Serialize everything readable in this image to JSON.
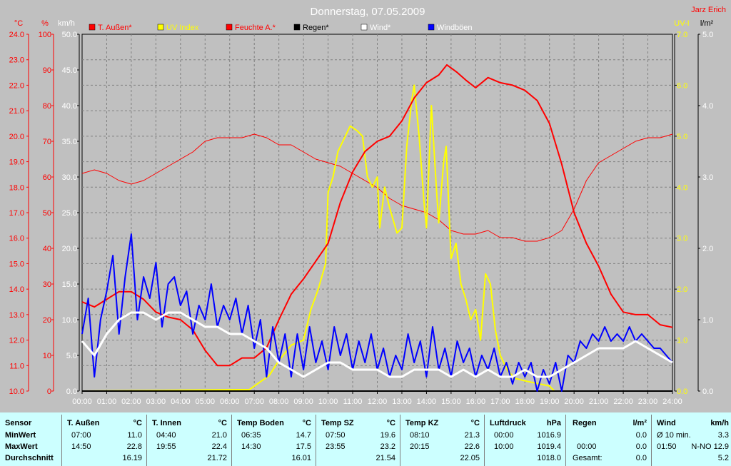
{
  "title": "Donnerstag, 07.05.2009",
  "author": "Jarz Erich",
  "axis_units": {
    "temp": "°C",
    "humidity": "%",
    "wind": "km/h",
    "uv": "UV-I",
    "rain": "l/m²"
  },
  "legend": [
    {
      "label": "T. Außen*",
      "color": "#ff0000",
      "text_color": "#ff0000"
    },
    {
      "label": "UV Index",
      "color": "#ffff00",
      "text_color": "#ffff00"
    },
    {
      "label": "Feuchte A.*",
      "color": "#ff0000",
      "text_color": "#ff0000"
    },
    {
      "label": "Regen*",
      "color": "#000000",
      "text_color": "#000000"
    },
    {
      "label": "Wind*",
      "color": "#ffffff",
      "text_color": "#ffffff"
    },
    {
      "label": "Windböen",
      "color": "#0000ff",
      "text_color": "#ffffff"
    }
  ],
  "colors": {
    "temp": "#ff0000",
    "humidity": "#ff0000",
    "uv": "#ffff00",
    "rain": "#000000",
    "wind": "#ffffff",
    "gusts": "#0000ff",
    "plot_bg": "#c0c0c0",
    "grid": "#808080",
    "panel_bg": "#ccffff"
  },
  "chart_data": {
    "type": "line",
    "title": "Donnerstag, 07.05.2009",
    "x_labels": [
      "00:00",
      "01:00",
      "02:00",
      "03:00",
      "04:00",
      "05:00",
      "06:00",
      "07:00",
      "08:00",
      "09:00",
      "10:00",
      "11:00",
      "12:00",
      "13:00",
      "14:00",
      "15:00",
      "16:00",
      "17:00",
      "18:00",
      "19:00",
      "20:00",
      "21:00",
      "22:00",
      "23:00",
      "24:00"
    ],
    "xlim": [
      0,
      24
    ],
    "grid": true,
    "axes": {
      "temp": {
        "ticks": [
          "10.0",
          "11.0",
          "12.0",
          "13.0",
          "14.0",
          "15.0",
          "16.0",
          "17.0",
          "18.0",
          "19.0",
          "20.0",
          "21.0",
          "22.0",
          "23.0",
          "24.0"
        ],
        "range": [
          10,
          24
        ],
        "unit": "°C"
      },
      "humidity": {
        "ticks": [
          "0",
          "10",
          "20",
          "30",
          "40",
          "50",
          "60",
          "70",
          "80",
          "90",
          "100"
        ],
        "range": [
          0,
          100
        ],
        "unit": "%"
      },
      "wind": {
        "ticks": [
          "0.0",
          "5.0",
          "10.0",
          "15.0",
          "20.0",
          "25.0",
          "30.0",
          "35.0",
          "40.0",
          "45.0",
          "50.0"
        ],
        "range": [
          0,
          50
        ],
        "unit": "km/h"
      },
      "uv": {
        "ticks": [
          "0.0",
          "1.0",
          "2.0",
          "3.0",
          "4.0",
          "5.0",
          "6.0",
          "7.0"
        ],
        "range": [
          0,
          7
        ],
        "unit": "UV-I"
      },
      "rain": {
        "ticks": [
          "0.0",
          "1.0",
          "2.0",
          "3.0",
          "4.0",
          "5.0"
        ],
        "range": [
          0,
          5
        ],
        "unit": "l/m²"
      }
    },
    "series": [
      {
        "name": "T. Außen*",
        "axis": "temp",
        "color": "#ff0000",
        "width": 2,
        "x": [
          0,
          0.5,
          1,
          1.5,
          2,
          2.5,
          3,
          3.5,
          4,
          4.5,
          5,
          5.5,
          6,
          6.5,
          7,
          7.5,
          8,
          8.5,
          9,
          9.5,
          10,
          10.5,
          11,
          11.5,
          12,
          12.5,
          13,
          13.5,
          14,
          14.5,
          14.83,
          15.25,
          15.6,
          16,
          16.5,
          17,
          17.5,
          18,
          18.5,
          19,
          19.5,
          20,
          20.5,
          21,
          21.5,
          22,
          22.5,
          23,
          23.5,
          24
        ],
        "y": [
          13.5,
          13.3,
          13.6,
          13.9,
          13.9,
          13.6,
          13.1,
          12.9,
          12.8,
          12.4,
          11.6,
          11.0,
          11.0,
          11.3,
          11.3,
          11.7,
          12.8,
          13.8,
          14.4,
          15.1,
          15.8,
          17.4,
          18.6,
          19.4,
          19.8,
          20.0,
          20.6,
          21.5,
          22.1,
          22.4,
          22.8,
          22.5,
          22.2,
          21.9,
          22.3,
          22.1,
          22.0,
          21.8,
          21.4,
          20.5,
          18.9,
          17.0,
          15.8,
          14.9,
          13.8,
          13.1,
          13.0,
          13.0,
          12.6,
          12.5
        ]
      },
      {
        "name": "Feuchte A.*",
        "axis": "humidity",
        "color": "#ff0000",
        "width": 1,
        "x": [
          0,
          0.5,
          1,
          1.5,
          2,
          2.5,
          3,
          3.5,
          4,
          4.5,
          5,
          5.5,
          6,
          6.5,
          7,
          7.5,
          8,
          8.5,
          9,
          9.5,
          10,
          10.5,
          11,
          11.5,
          12,
          12.5,
          13,
          13.5,
          14,
          14.5,
          15,
          15.5,
          16,
          16.5,
          17,
          17.5,
          18,
          18.5,
          19,
          19.5,
          20,
          20.5,
          21,
          21.5,
          22,
          22.5,
          23,
          23.5,
          24
        ],
        "y": [
          61,
          62,
          61,
          59,
          58,
          59,
          61,
          63,
          65,
          67,
          70,
          71,
          71,
          71,
          72,
          71,
          69,
          69,
          67,
          65,
          64,
          63,
          61,
          59,
          57,
          54,
          52,
          51,
          50,
          48,
          45,
          44,
          44,
          45,
          43,
          43,
          42,
          42,
          43,
          45,
          51,
          59,
          64,
          66,
          68,
          70,
          71,
          71,
          72
        ]
      },
      {
        "name": "UV Index",
        "axis": "uv",
        "color": "#ffff00",
        "width": 2,
        "x": [
          0,
          6.8,
          7.3,
          7.6,
          8,
          8.5,
          9,
          9.3,
          9.6,
          9.9,
          10,
          10.2,
          10.4,
          10.6,
          10.9,
          11.2,
          11.4,
          11.6,
          11.8,
          12,
          12.1,
          12.3,
          12.5,
          12.8,
          13,
          13.2,
          13.4,
          13.5,
          13.7,
          13.9,
          14.0,
          14.2,
          14.4,
          14.5,
          14.7,
          14.8,
          15.0,
          15.2,
          15.4,
          15.6,
          15.8,
          16.0,
          16.2,
          16.4,
          16.6,
          16.8,
          17.0,
          17.3,
          17.6,
          18,
          18.5,
          19,
          19.2,
          24
        ],
        "y": [
          0,
          0.03,
          0.2,
          0.3,
          0.6,
          0.9,
          1.0,
          1.6,
          2.0,
          2.5,
          3.9,
          4.2,
          4.7,
          4.9,
          5.2,
          5.1,
          5.0,
          4.2,
          4.0,
          4.2,
          3.2,
          4.0,
          3.6,
          3.1,
          3.2,
          4.8,
          5.7,
          6.0,
          5.0,
          3.7,
          3.2,
          5.6,
          4.0,
          3.3,
          4.5,
          4.8,
          2.6,
          2.9,
          2.1,
          1.8,
          1.4,
          1.6,
          1.0,
          2.3,
          2.1,
          1.2,
          0.7,
          0.4,
          0.25,
          0.2,
          0.15,
          0.1,
          0,
          0
        ]
      },
      {
        "name": "Regen*",
        "axis": "rain",
        "color": "#000000",
        "width": 2,
        "x": [
          0,
          24
        ],
        "y": [
          0,
          0
        ]
      },
      {
        "name": "Wind*",
        "axis": "wind",
        "color": "#ffffff",
        "width": 3,
        "x": [
          0,
          0.5,
          1,
          1.5,
          2,
          2.5,
          3,
          3.5,
          4,
          4.5,
          5,
          5.5,
          6,
          6.5,
          7,
          7.5,
          8,
          8.5,
          9,
          9.5,
          10,
          10.5,
          11,
          11.5,
          12,
          12.5,
          13,
          13.5,
          14,
          14.5,
          15,
          15.5,
          16,
          16.5,
          17,
          17.5,
          18,
          18.5,
          19,
          19.5,
          20,
          20.5,
          21,
          21.5,
          22,
          22.5,
          23,
          23.5,
          24
        ],
        "y": [
          7,
          5,
          8,
          10,
          11,
          11,
          10,
          11,
          11,
          10,
          9,
          9,
          8,
          8,
          7,
          6,
          4,
          3,
          2,
          3,
          4,
          4,
          3,
          3,
          3,
          2,
          2,
          3,
          3,
          3,
          2,
          3,
          2,
          3,
          2,
          2,
          3,
          2,
          2,
          3,
          4,
          5,
          6,
          6,
          6,
          7,
          6,
          5,
          4
        ]
      },
      {
        "name": "Windböen",
        "axis": "wind",
        "color": "#0000ff",
        "width": 2,
        "x": [
          0,
          0.25,
          0.5,
          0.75,
          1,
          1.25,
          1.5,
          1.75,
          2,
          2.25,
          2.5,
          2.75,
          3,
          3.25,
          3.5,
          3.75,
          4,
          4.25,
          4.5,
          4.75,
          5,
          5.25,
          5.5,
          5.75,
          6,
          6.25,
          6.5,
          6.75,
          7,
          7.25,
          7.5,
          7.75,
          8,
          8.25,
          8.5,
          8.75,
          9,
          9.25,
          9.5,
          9.75,
          10,
          10.25,
          10.5,
          10.75,
          11,
          11.25,
          11.5,
          11.75,
          12,
          12.25,
          12.5,
          12.75,
          13,
          13.25,
          13.5,
          13.75,
          14,
          14.25,
          14.5,
          14.75,
          15,
          15.25,
          15.5,
          15.75,
          16,
          16.25,
          16.5,
          16.75,
          17,
          17.25,
          17.5,
          17.75,
          18,
          18.25,
          18.5,
          18.75,
          19,
          19.25,
          19.5,
          19.75,
          20,
          20.25,
          20.5,
          20.75,
          21,
          21.25,
          21.5,
          21.75,
          22,
          22.25,
          22.5,
          22.75,
          23,
          23.25,
          23.5,
          23.75,
          24
        ],
        "y": [
          8,
          13,
          2,
          10,
          14,
          19,
          8,
          16,
          22,
          10,
          16,
          13,
          18,
          9,
          15,
          16,
          12,
          14,
          8,
          12,
          10,
          15,
          9,
          12,
          10,
          13,
          8,
          12,
          6,
          10,
          2,
          9,
          4,
          8,
          2,
          8,
          3,
          9,
          4,
          7,
          3,
          9,
          5,
          8,
          3,
          7,
          4,
          8,
          3,
          6,
          2,
          5,
          3,
          8,
          4,
          7,
          2,
          9,
          3,
          6,
          2,
          7,
          4,
          6,
          2,
          5,
          3,
          6,
          2,
          4,
          1,
          4,
          2,
          4,
          0,
          3,
          1,
          4,
          0,
          5,
          4,
          7,
          6,
          8,
          7,
          9,
          7,
          8,
          7,
          9,
          7,
          8,
          7,
          6,
          6,
          5,
          4
        ]
      }
    ]
  },
  "stats": {
    "sensor_col": {
      "header": "Sensor",
      "rows": [
        "MinWert",
        "MaxWert",
        "Durchschnitt"
      ]
    },
    "columns": [
      {
        "name": "T. Außen",
        "unit": "°C",
        "min_time": "07:00",
        "min_val": "11.0",
        "max_time": "14:50",
        "max_val": "22.8",
        "avg": "16.19"
      },
      {
        "name": "T. Innen",
        "unit": "°C",
        "min_time": "04:40",
        "min_val": "21.0",
        "max_time": "19:55",
        "max_val": "22.4",
        "avg": "21.72"
      },
      {
        "name": "Temp Boden",
        "unit": "°C",
        "min_time": "06:35",
        "min_val": "14.7",
        "max_time": "14:30",
        "max_val": "17.5",
        "avg": "16.01"
      },
      {
        "name": "Temp SZ",
        "unit": "°C",
        "min_time": "07:50",
        "min_val": "19.6",
        "max_time": "23:55",
        "max_val": "23.2",
        "avg": "21.54"
      },
      {
        "name": "Temp KZ",
        "unit": "°C",
        "min_time": "08:10",
        "min_val": "21.3",
        "max_time": "20:15",
        "max_val": "22.6",
        "avg": "22.05"
      },
      {
        "name": "Luftdruck",
        "unit": "hPa",
        "min_time": "00:00",
        "min_val": "1016.9",
        "max_time": "10:00",
        "max_val": "1019.4",
        "avg": "1018.0"
      }
    ],
    "regen": {
      "name": "Regen",
      "unit": "l/m²",
      "r1_time": "",
      "r1_val": "0.0",
      "r2_time": "00:00",
      "r2_val": "0.0",
      "r3_label": "Gesamt:",
      "r3_val": "0.0"
    },
    "wind": {
      "name": "Wind",
      "unit": "km/h",
      "r1_label": "Ø 10 min.",
      "r1_val": "3.3",
      "r2_time": "01:50",
      "r2_val": "N-NO 12.9",
      "r3_val": "5.2"
    }
  }
}
